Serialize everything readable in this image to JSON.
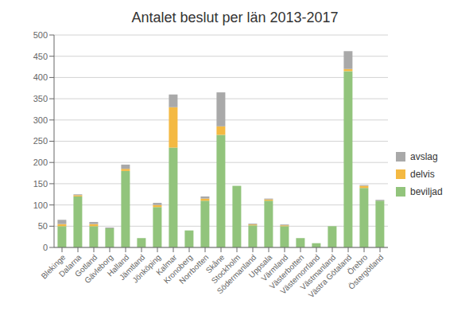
{
  "chart_data": {
    "type": "bar",
    "title": "Antalet beslut per län 2013-2017",
    "categories": [
      "Blekinge",
      "Dalarna",
      "Gotland",
      "Gävleborg",
      "Halland",
      "Jämtland",
      "Jönköping",
      "Kalmar",
      "Kronoberg",
      "Norrbotten",
      "Skåne",
      "Stockholm",
      "Södermanland",
      "Uppsala",
      "Värmland",
      "Västerbotten",
      "Västernorrland",
      "Västmanland",
      "Västra Götaland",
      "Örebro",
      "Östergötland"
    ],
    "series": [
      {
        "name": "beviljad",
        "color": "#92C47C",
        "values": [
          50,
          120,
          50,
          45,
          180,
          22,
          95,
          235,
          40,
          110,
          265,
          145,
          52,
          110,
          50,
          22,
          10,
          50,
          415,
          140,
          110
        ]
      },
      {
        "name": "delvis",
        "color": "#F4B942",
        "values": [
          5,
          3,
          5,
          0,
          5,
          0,
          5,
          95,
          0,
          5,
          20,
          0,
          2,
          3,
          2,
          0,
          0,
          0,
          5,
          5,
          0
        ]
      },
      {
        "name": "avslag",
        "color": "#A9A9A9",
        "values": [
          10,
          2,
          5,
          2,
          10,
          0,
          5,
          30,
          0,
          5,
          80,
          0,
          2,
          2,
          2,
          0,
          0,
          0,
          42,
          2,
          2
        ]
      }
    ],
    "ylim": [
      0,
      500
    ],
    "yticks": [
      0,
      50,
      100,
      150,
      200,
      250,
      300,
      350,
      400,
      450,
      500
    ],
    "stacked": true,
    "grid": true,
    "legend": "right"
  }
}
